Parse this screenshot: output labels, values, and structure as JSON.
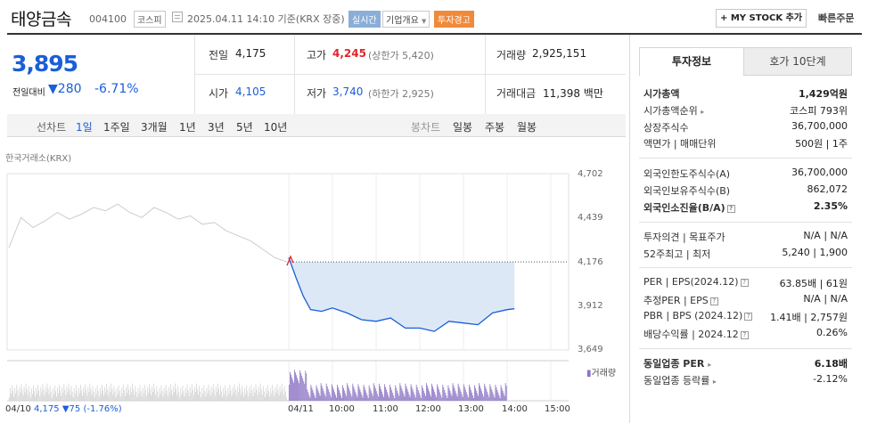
{
  "header": {
    "name": "태양금속",
    "code": "004100",
    "market_badge": "코스피",
    "datetime": "2025.04.11 14:10 기준(KRX 장중)",
    "realtime_badge": "실시간",
    "company_btn": "기업개요",
    "warning_badge": "투자경고",
    "mystock_btn": "+ MY STOCK 추가",
    "quick_order_btn": "빠른주문"
  },
  "price": {
    "current": "3,895",
    "change_label": "전일대비",
    "change_amount": "280",
    "change_pct": "-6.71%"
  },
  "quote": {
    "prev_close_label": "전일",
    "prev_close": "4,175",
    "high_label": "고가",
    "high": "4,245",
    "upper_limit": "(상한가 5,420)",
    "volume_label": "거래량",
    "volume": "2,925,151",
    "open_label": "시가",
    "open": "4,105",
    "low_label": "저가",
    "low": "3,740",
    "lower_limit": "(하한가 2,925)",
    "value_label": "거래대금",
    "value": "11,398 백만"
  },
  "tabs": {
    "line_chart": "선차트",
    "day1": "1일",
    "week1": "1주일",
    "month3": "3개월",
    "year1": "1년",
    "year3": "3년",
    "year5": "5년",
    "year10": "10년",
    "candle_chart": "봉차트",
    "daily": "일봉",
    "weekly": "주봉",
    "monthly": "월봉"
  },
  "chart": {
    "source": "한국거래소(KRX)",
    "volume_legend": "거래량",
    "footer_date": "04/10",
    "footer_price": "4,175",
    "footer_change": "▼75 (-1.76%)",
    "colors": {
      "up": "#e0242a",
      "down": "#1a5ed8",
      "fill": "#dde8f7",
      "volume": "#8b73c4",
      "prev_day": "#cccccc"
    }
  },
  "chart_data": {
    "type": "line",
    "title": "",
    "y_ticks": [
      "4,702",
      "4,439",
      "4,176",
      "3,912",
      "3,649"
    ],
    "x_ticks": [
      "04/10",
      "04/11",
      "10:00",
      "11:00",
      "12:00",
      "13:00",
      "14:00",
      "15:00"
    ],
    "ylim": [
      3649,
      4702
    ],
    "reference_price": 4175,
    "series": [
      {
        "name": "",
        "x": [
          "09:00",
          "09:10",
          "09:20",
          "09:30",
          "09:45",
          "10:00",
          "10:20",
          "10:40",
          "11:00",
          "11:20",
          "11:40",
          "12:00",
          "12:20",
          "12:40",
          "13:00",
          "13:20",
          "13:40",
          "14:00",
          "14:10"
        ],
        "values": [
          4200,
          4080,
          3970,
          3890,
          3880,
          3900,
          3870,
          3830,
          3820,
          3840,
          3780,
          3780,
          3760,
          3820,
          3810,
          3800,
          3870,
          3890,
          3895
        ]
      }
    ]
  },
  "right_panel": {
    "tab_active": "투자정보",
    "tab_inactive": "호가 10단계",
    "rows": [
      {
        "label": "시가총액",
        "value": "1,429억원",
        "bold": true
      },
      {
        "label": "시가총액순위",
        "value": "코스피 793위"
      },
      {
        "label": "상장주식수",
        "value": "36,700,000"
      },
      {
        "label": "액면가 | 매매단위",
        "value": "500원 | 1주"
      },
      {
        "label": "외국인한도주식수(A)",
        "value": "36,700,000"
      },
      {
        "label": "외국인보유주식수(B)",
        "value": "862,072"
      },
      {
        "label": "외국인소진율(B/A)",
        "value": "2.35%",
        "bold": true
      },
      {
        "label": "투자의견 | 목표주가",
        "value": "N/A | N/A"
      },
      {
        "label": "52주최고 | 최저",
        "value": "5,240 | 1,900"
      },
      {
        "label": "PER | EPS(2024.12)",
        "value": "63.85배 | 61원"
      },
      {
        "label": "추정PER | EPS",
        "value": "N/A | N/A"
      },
      {
        "label": "PBR | BPS (2024.12)",
        "value": "1.41배 | 2,757원"
      },
      {
        "label": "배당수익률 | 2024.12",
        "value": "0.26%"
      },
      {
        "label": "동일업종 PER",
        "value": "6.18배",
        "bold": true
      },
      {
        "label": "동일업종 등락률",
        "value": "-2.12%",
        "blue": true
      }
    ]
  }
}
